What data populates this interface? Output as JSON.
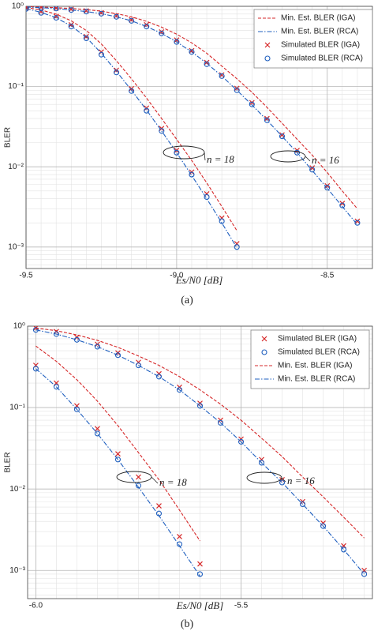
{
  "chart_data": [
    {
      "type": "line",
      "caption": "(a)",
      "xlabel": "Es/N0  [dB]",
      "ylabel": "BLER",
      "log_y": true,
      "grid": true,
      "legend": "upper right",
      "xlim": [
        -9.5,
        -8.35
      ],
      "xticks": [
        -9.5,
        {
          "value": -9,
          "label": "-9.0"
        },
        -8.5
      ],
      "ylim": [
        0.00054,
        1
      ],
      "yticks": [
        {
          "value": 1,
          "label": "10⁰"
        },
        {
          "value": 0.1,
          "label": "10⁻¹"
        },
        {
          "value": 0.01,
          "label": "10⁻²"
        },
        {
          "value": 0.001,
          "label": "10⁻³"
        }
      ],
      "annotations": [
        "n = 18",
        "n = 16"
      ],
      "series": [
        {
          "name": "Min. Est. BLER (IGA)",
          "color": "#d62728",
          "style": "dashed",
          "x": [
            -9.5,
            -9.45,
            -9.4,
            -9.35,
            -9.3,
            -9.25,
            -9.2,
            -9.15,
            -9.1,
            -9.05,
            -9.0,
            -8.95,
            -8.9,
            -8.85,
            -8.8
          ],
          "values": [
            0.97,
            0.9,
            0.8,
            0.66,
            0.5,
            0.34,
            0.21,
            0.125,
            0.072,
            0.04,
            0.022,
            0.012,
            0.0063,
            0.0032,
            0.0016
          ]
        },
        {
          "name": "Min. Est. BLER (RCA)",
          "color": "#1f5fbf",
          "style": "dashdot",
          "x": [
            -9.5,
            -9.45,
            -9.4,
            -9.35,
            -9.3,
            -9.25,
            -9.2,
            -9.15,
            -9.1,
            -9.05,
            -9.0,
            -8.95,
            -8.9,
            -8.85,
            -8.8
          ],
          "values": [
            0.94,
            0.84,
            0.72,
            0.57,
            0.41,
            0.26,
            0.155,
            0.09,
            0.051,
            0.028,
            0.015,
            0.0078,
            0.004,
            0.002,
            0.00098
          ]
        },
        {
          "name": "Simulated BLER (IGA)",
          "color": "#d62728",
          "style": "marker-x",
          "x": [
            -9.5,
            -9.45,
            -9.4,
            -9.35,
            -9.3,
            -9.25,
            -9.2,
            -9.15,
            -9.1,
            -9.05,
            -9.0,
            -8.95,
            -8.9,
            -8.85,
            -8.8
          ],
          "values": [
            0.95,
            0.86,
            0.75,
            0.59,
            0.42,
            0.27,
            0.16,
            0.094,
            0.054,
            0.03,
            0.016,
            0.0086,
            0.0046,
            0.0023,
            0.0011
          ]
        },
        {
          "name": "Simulated BLER (RCA)",
          "color": "#1f5fbf",
          "style": "marker-circle",
          "x": [
            -9.5,
            -9.45,
            -9.4,
            -9.35,
            -9.3,
            -9.25,
            -9.2,
            -9.15,
            -9.1,
            -9.05,
            -9.0,
            -8.95,
            -8.9,
            -8.85,
            -8.8
          ],
          "values": [
            0.93,
            0.83,
            0.72,
            0.56,
            0.4,
            0.25,
            0.15,
            0.088,
            0.05,
            0.028,
            0.015,
            0.008,
            0.0042,
            0.0021,
            0.001
          ]
        },
        {
          "name": "Min. Est. BLER (IGA)",
          "color": "#d62728",
          "style": "dashed",
          "x": [
            -9.5,
            -9.45,
            -9.4,
            -9.35,
            -9.3,
            -9.25,
            -9.2,
            -9.15,
            -9.1,
            -9.05,
            -9.0,
            -8.95,
            -8.9,
            -8.85,
            -8.8,
            -8.75,
            -8.7,
            -8.65,
            -8.6,
            -8.55,
            -8.5,
            -8.45,
            -8.4
          ],
          "values": [
            0.99,
            0.98,
            0.96,
            0.94,
            0.91,
            0.87,
            0.81,
            0.74,
            0.65,
            0.55,
            0.45,
            0.35,
            0.26,
            0.18,
            0.125,
            0.085,
            0.055,
            0.035,
            0.022,
            0.014,
            0.0085,
            0.005,
            0.003
          ]
        },
        {
          "name": "Min. Est. BLER (RCA)",
          "color": "#1f5fbf",
          "style": "dashdot",
          "x": [
            -9.5,
            -9.45,
            -9.4,
            -9.35,
            -9.3,
            -9.25,
            -9.2,
            -9.15,
            -9.1,
            -9.05,
            -9.0,
            -8.95,
            -8.9,
            -8.85,
            -8.8,
            -8.75,
            -8.7,
            -8.65,
            -8.6,
            -8.55,
            -8.5,
            -8.45,
            -8.4
          ],
          "values": [
            0.98,
            0.96,
            0.94,
            0.9,
            0.86,
            0.81,
            0.74,
            0.66,
            0.56,
            0.46,
            0.36,
            0.27,
            0.195,
            0.135,
            0.09,
            0.059,
            0.038,
            0.024,
            0.015,
            0.009,
            0.0054,
            0.0032,
            0.0019
          ]
        },
        {
          "name": "Simulated BLER (IGA)",
          "color": "#d62728",
          "style": "marker-x",
          "x": [
            -9.5,
            -9.45,
            -9.4,
            -9.35,
            -9.3,
            -9.25,
            -9.2,
            -9.15,
            -9.1,
            -9.05,
            -9.0,
            -8.95,
            -8.9,
            -8.85,
            -8.8,
            -8.75,
            -8.7,
            -8.65,
            -8.6,
            -8.55,
            -8.5,
            -8.45,
            -8.4
          ],
          "values": [
            0.99,
            0.97,
            0.95,
            0.92,
            0.88,
            0.83,
            0.76,
            0.68,
            0.59,
            0.48,
            0.38,
            0.28,
            0.2,
            0.14,
            0.095,
            0.063,
            0.04,
            0.025,
            0.016,
            0.0097,
            0.0058,
            0.0035,
            0.0021
          ]
        },
        {
          "name": "Simulated BLER (RCA)",
          "color": "#1f5fbf",
          "style": "marker-circle",
          "x": [
            -9.5,
            -9.45,
            -9.4,
            -9.35,
            -9.3,
            -9.25,
            -9.2,
            -9.15,
            -9.1,
            -9.05,
            -9.0,
            -8.95,
            -8.9,
            -8.85,
            -8.8,
            -8.75,
            -8.7,
            -8.65,
            -8.6,
            -8.55,
            -8.5,
            -8.45,
            -8.4
          ],
          "values": [
            0.98,
            0.96,
            0.94,
            0.9,
            0.86,
            0.81,
            0.74,
            0.66,
            0.56,
            0.46,
            0.36,
            0.27,
            0.19,
            0.135,
            0.09,
            0.06,
            0.038,
            0.024,
            0.015,
            0.0092,
            0.0055,
            0.0033,
            0.002
          ]
        }
      ]
    },
    {
      "type": "line",
      "caption": "(b)",
      "xlabel": "Es/N0  [dB]",
      "ylabel": "BLER",
      "log_y": true,
      "grid": true,
      "legend": "upper right",
      "xlim": [
        -6.02,
        -5.18
      ],
      "xticks": [
        {
          "value": -6,
          "label": "-6.0"
        },
        -5.5
      ],
      "ylim": [
        0.00045,
        1
      ],
      "yticks": [
        {
          "value": 1,
          "label": "10⁰"
        },
        {
          "value": 0.1,
          "label": "10⁻¹"
        },
        {
          "value": 0.01,
          "label": "10⁻²"
        },
        {
          "value": 0.001,
          "label": "10⁻³"
        }
      ],
      "annotations": [
        "n = 18",
        "n = 16"
      ],
      "series": [
        {
          "name": "Simulated BLER (IGA)",
          "color": "#d62728",
          "style": "marker-x",
          "x": [
            -6.0,
            -5.95,
            -5.9,
            -5.85,
            -5.8,
            -5.75,
            -5.7,
            -5.65,
            -5.6
          ],
          "values": [
            0.33,
            0.2,
            0.105,
            0.055,
            0.027,
            0.014,
            0.0062,
            0.0026,
            0.0012
          ]
        },
        {
          "name": "Simulated BLER (RCA)",
          "color": "#1f5fbf",
          "style": "marker-circle",
          "x": [
            -6.0,
            -5.95,
            -5.9,
            -5.85,
            -5.8,
            -5.75,
            -5.7,
            -5.65,
            -5.6
          ],
          "values": [
            0.3,
            0.18,
            0.095,
            0.048,
            0.023,
            0.011,
            0.005,
            0.0021,
            0.0009
          ]
        },
        {
          "name": "Min. Est. BLER (IGA)",
          "color": "#d62728",
          "style": "dashed",
          "x": [
            -6.0,
            -5.95,
            -5.9,
            -5.85,
            -5.8,
            -5.75,
            -5.7,
            -5.65,
            -5.6
          ],
          "values": [
            0.57,
            0.37,
            0.22,
            0.12,
            0.06,
            0.028,
            0.013,
            0.0055,
            0.0023
          ]
        },
        {
          "name": "Min. Est. BLER (RCA)",
          "color": "#1f5fbf",
          "style": "dashdot",
          "x": [
            -6.0,
            -5.95,
            -5.9,
            -5.85,
            -5.8,
            -5.75,
            -5.7,
            -5.65,
            -5.6
          ],
          "values": [
            0.3,
            0.18,
            0.095,
            0.048,
            0.023,
            0.0105,
            0.0047,
            0.002,
            0.00085
          ]
        },
        {
          "name": "Simulated BLER (IGA)",
          "color": "#d62728",
          "style": "marker-x",
          "x": [
            -6.0,
            -5.95,
            -5.9,
            -5.85,
            -5.8,
            -5.75,
            -5.7,
            -5.65,
            -5.6,
            -5.55,
            -5.5,
            -5.45,
            -5.4,
            -5.35,
            -5.3,
            -5.25,
            -5.2
          ],
          "values": [
            0.95,
            0.86,
            0.73,
            0.6,
            0.47,
            0.36,
            0.26,
            0.178,
            0.113,
            0.07,
            0.041,
            0.023,
            0.013,
            0.007,
            0.0038,
            0.002,
            0.001
          ]
        },
        {
          "name": "Simulated BLER (RCA)",
          "color": "#1f5fbf",
          "style": "marker-circle",
          "x": [
            -6.0,
            -5.95,
            -5.9,
            -5.85,
            -5.8,
            -5.75,
            -5.7,
            -5.65,
            -5.6,
            -5.55,
            -5.5,
            -5.45,
            -5.4,
            -5.35,
            -5.3,
            -5.25,
            -5.2
          ],
          "values": [
            0.9,
            0.8,
            0.68,
            0.56,
            0.44,
            0.33,
            0.24,
            0.165,
            0.105,
            0.065,
            0.038,
            0.021,
            0.012,
            0.0065,
            0.0035,
            0.0018,
            0.0009
          ]
        },
        {
          "name": "Min. Est. BLER (IGA)",
          "color": "#d62728",
          "style": "dashed",
          "x": [
            -6.0,
            -5.95,
            -5.9,
            -5.85,
            -5.8,
            -5.75,
            -5.7,
            -5.65,
            -5.6,
            -5.55,
            -5.5,
            -5.45,
            -5.4,
            -5.35,
            -5.3,
            -5.25,
            -5.2
          ],
          "values": [
            0.95,
            0.88,
            0.78,
            0.67,
            0.55,
            0.43,
            0.33,
            0.24,
            0.165,
            0.11,
            0.07,
            0.042,
            0.025,
            0.014,
            0.008,
            0.0045,
            0.0025
          ]
        },
        {
          "name": "Min. Est. BLER (RCA)",
          "color": "#1f5fbf",
          "style": "dashdot",
          "x": [
            -6.0,
            -5.95,
            -5.9,
            -5.85,
            -5.8,
            -5.75,
            -5.7,
            -5.65,
            -5.6,
            -5.55,
            -5.5,
            -5.45,
            -5.4,
            -5.35,
            -5.3,
            -5.25,
            -5.2
          ],
          "values": [
            0.9,
            0.8,
            0.68,
            0.56,
            0.44,
            0.33,
            0.24,
            0.165,
            0.105,
            0.065,
            0.038,
            0.021,
            0.012,
            0.0065,
            0.0035,
            0.0018,
            0.0009
          ]
        }
      ]
    }
  ]
}
